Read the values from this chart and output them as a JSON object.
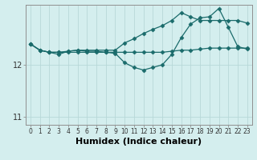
{
  "xlabel": "Humidex (Indice chaleur)",
  "bg_color": "#d4eeee",
  "grid_color": "#b8d8d8",
  "line_color": "#1a6b6b",
  "x_values": [
    0,
    1,
    2,
    3,
    4,
    5,
    6,
    7,
    8,
    9,
    10,
    11,
    12,
    13,
    14,
    15,
    16,
    17,
    18,
    19,
    20,
    21,
    22,
    23
  ],
  "line1": [
    12.4,
    12.28,
    12.24,
    12.24,
    12.26,
    12.28,
    12.28,
    12.28,
    12.28,
    12.28,
    12.42,
    12.5,
    12.6,
    12.68,
    12.75,
    12.85,
    13.0,
    12.92,
    12.85,
    12.85,
    12.85,
    12.85,
    12.85,
    12.8
  ],
  "line2": [
    12.4,
    12.28,
    12.24,
    12.24,
    12.24,
    12.24,
    12.24,
    12.24,
    12.24,
    12.24,
    12.24,
    12.24,
    12.24,
    12.24,
    12.24,
    12.26,
    12.28,
    12.28,
    12.3,
    12.32,
    12.32,
    12.32,
    12.32,
    12.32
  ],
  "line3": [
    12.4,
    12.28,
    12.24,
    12.2,
    12.26,
    12.28,
    12.26,
    12.26,
    12.24,
    12.22,
    12.04,
    11.95,
    11.9,
    11.95,
    12.0,
    12.2,
    12.52,
    12.78,
    12.9,
    12.92,
    13.08,
    12.72,
    12.35,
    12.3
  ],
  "ylim": [
    10.85,
    13.15
  ],
  "yticks": [
    11,
    12
  ],
  "xlim": [
    -0.5,
    23.5
  ],
  "tick_fontsize": 7,
  "label_fontsize": 8
}
